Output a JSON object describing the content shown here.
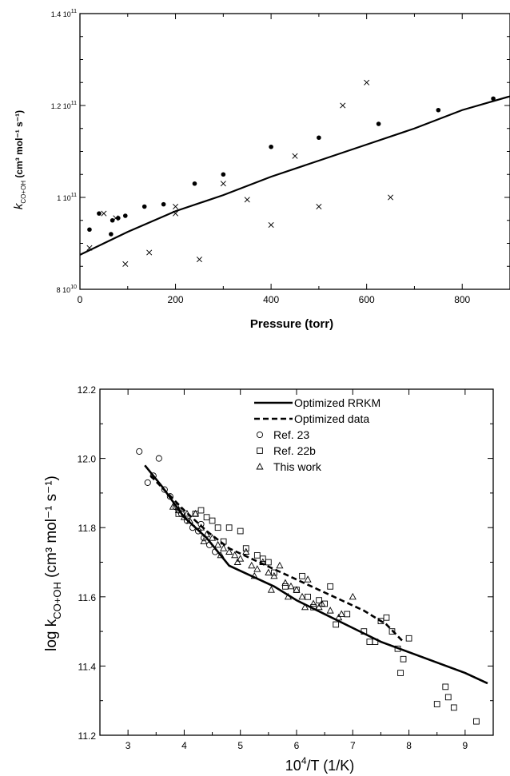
{
  "chart_data": [
    {
      "type": "scatter",
      "xlabel": "Pressure (torr)",
      "ylabel_k": "k",
      "ylabel_sub": "CO+OH",
      "ylabel_units": "(cm³ mol⁻¹ s⁻¹)",
      "xlim": [
        0,
        900
      ],
      "ylim": [
        80000000000.0,
        140000000000.0
      ],
      "x_ticks": [
        {
          "value": 0,
          "label": "0"
        },
        {
          "value": 200,
          "label": "200"
        },
        {
          "value": 400,
          "label": "400"
        },
        {
          "value": 600,
          "label": "600"
        },
        {
          "value": 800,
          "label": "800"
        }
      ],
      "y_ticks": [
        {
          "value": 80000000000.0,
          "mant": "8 10",
          "exp": "10"
        },
        {
          "value": 100000000000.0,
          "mant": "1 10",
          "exp": "11"
        },
        {
          "value": 120000000000.0,
          "mant": "1.2 10",
          "exp": "11"
        },
        {
          "value": 140000000000.0,
          "mant": "1.4 10",
          "exp": "11"
        }
      ],
      "series": [
        {
          "marker": "line",
          "x": [
            0,
            50,
            100,
            200,
            300,
            400,
            500,
            600,
            700,
            800,
            900
          ],
          "y": [
            87500000000.0,
            90000000000.0,
            92500000000.0,
            97000000000.0,
            100500000000.0,
            104500000000.0,
            108000000000.0,
            111500000000.0,
            115000000000.0,
            119000000000.0,
            122000000000.0
          ]
        },
        {
          "marker": "dot",
          "x": [
            20,
            40,
            65,
            68,
            80,
            95,
            135,
            175,
            240,
            300,
            400,
            500,
            625,
            750,
            865
          ],
          "y": [
            93000000000.0,
            96500000000.0,
            92000000000.0,
            95000000000.0,
            95500000000.0,
            96000000000.0,
            98000000000.0,
            98500000000.0,
            103000000000.0,
            105000000000.0,
            111000000000.0,
            113000000000.0,
            116000000000.0,
            119000000000.0,
            121500000000.0
          ]
        },
        {
          "marker": "x",
          "x": [
            20,
            50,
            75,
            95,
            145,
            200,
            200,
            250,
            300,
            350,
            400,
            450,
            500,
            550,
            600,
            650
          ],
          "y": [
            89000000000.0,
            96500000000.0,
            95500000000.0,
            85500000000.0,
            88000000000.0,
            96500000000.0,
            98000000000.0,
            86500000000.0,
            103000000000.0,
            99500000000.0,
            94000000000.0,
            109000000000.0,
            98000000000.0,
            120000000000.0,
            125000000000.0,
            100000000000.0
          ]
        }
      ]
    },
    {
      "type": "scatter",
      "xlabel_base": "10",
      "xlabel_exp": "4",
      "xlabel_rest": "/T   (1/K)",
      "ylabel_main": "log k",
      "ylabel_sub": "CO+OH",
      "ylabel_units": "(cm³ mol⁻¹ s⁻¹)",
      "xlim": [
        2.5,
        9.5
      ],
      "ylim": [
        11.2,
        12.2
      ],
      "x_ticks": [
        "3",
        "4",
        "5",
        "6",
        "7",
        "8",
        "9"
      ],
      "y_ticks": [
        "11.2",
        "11.4",
        "11.6",
        "11.8",
        "12.0",
        "12.2"
      ],
      "legend": [
        "Optimized RRKM",
        "Optimized  data",
        "Ref. 23",
        "Ref. 22b",
        "This work"
      ],
      "series": [
        {
          "name": "Optimized RRKM",
          "marker": "solid",
          "x": [
            3.3,
            3.6,
            4.0,
            4.4,
            4.8,
            5.2,
            5.6,
            6.0,
            6.5,
            7.0,
            7.5,
            8.0,
            8.5,
            9.0,
            9.4
          ],
          "y": [
            11.98,
            11.92,
            11.83,
            11.77,
            11.69,
            11.66,
            11.63,
            11.59,
            11.55,
            11.51,
            11.47,
            11.44,
            11.41,
            11.38,
            11.35
          ]
        },
        {
          "name": "Optimized  data",
          "marker": "dashed",
          "x": [
            3.4,
            3.7,
            4.0,
            4.4,
            4.8,
            5.2,
            5.6,
            6.0,
            6.4,
            6.8,
            7.2,
            7.6,
            7.9
          ],
          "y": [
            11.95,
            11.9,
            11.85,
            11.79,
            11.74,
            11.71,
            11.68,
            11.65,
            11.62,
            11.59,
            11.56,
            11.52,
            11.47
          ]
        },
        {
          "name": "Ref. 23",
          "marker": "circle",
          "x": [
            3.2,
            3.35,
            3.45,
            3.55,
            3.65,
            3.75,
            3.85,
            3.95,
            4.05,
            4.15,
            4.25,
            4.35,
            4.45,
            4.55,
            3.9,
            4.3
          ],
          "y": [
            12.02,
            11.93,
            11.95,
            12.0,
            11.91,
            11.89,
            11.86,
            11.84,
            11.82,
            11.8,
            11.79,
            11.77,
            11.75,
            11.73,
            11.85,
            11.81
          ]
        },
        {
          "name": "Ref. 22b",
          "marker": "square",
          "x": [
            3.9,
            4.2,
            4.4,
            4.6,
            4.7,
            4.8,
            5.0,
            5.1,
            5.3,
            5.5,
            5.6,
            5.8,
            6.0,
            6.1,
            6.2,
            6.3,
            6.5,
            6.6,
            6.7,
            6.9,
            7.2,
            7.4,
            7.5,
            7.6,
            7.7,
            7.8,
            7.9,
            8.0,
            8.5,
            8.7,
            8.8,
            9.2,
            4.3,
            4.5,
            5.4,
            6.4,
            7.3,
            7.85,
            8.65
          ],
          "y": [
            11.84,
            11.84,
            11.83,
            11.8,
            11.76,
            11.8,
            11.79,
            11.74,
            11.72,
            11.7,
            11.67,
            11.63,
            11.62,
            11.66,
            11.6,
            11.57,
            11.58,
            11.63,
            11.52,
            11.55,
            11.5,
            11.47,
            11.53,
            11.54,
            11.5,
            11.45,
            11.42,
            11.48,
            11.29,
            11.31,
            11.28,
            11.24,
            11.85,
            11.82,
            11.71,
            11.59,
            11.47,
            11.38,
            11.34
          ]
        },
        {
          "name": "This work",
          "marker": "triangle",
          "x": [
            3.8,
            3.9,
            4.0,
            4.1,
            4.2,
            4.3,
            4.4,
            4.5,
            4.6,
            4.7,
            4.8,
            4.9,
            5.0,
            5.1,
            5.2,
            5.3,
            5.4,
            5.5,
            5.6,
            5.7,
            5.8,
            5.9,
            6.0,
            6.1,
            6.2,
            6.3,
            6.4,
            6.6,
            6.8,
            7.0,
            4.05,
            4.35,
            4.65,
            4.95,
            5.25,
            5.55,
            5.85,
            6.15,
            6.45,
            6.75
          ],
          "y": [
            11.86,
            11.85,
            11.83,
            11.82,
            11.84,
            11.8,
            11.78,
            11.77,
            11.75,
            11.74,
            11.73,
            11.72,
            11.71,
            11.73,
            11.69,
            11.68,
            11.7,
            11.67,
            11.66,
            11.69,
            11.64,
            11.63,
            11.62,
            11.6,
            11.65,
            11.58,
            11.57,
            11.56,
            11.55,
            11.6,
            11.84,
            11.76,
            11.72,
            11.7,
            11.66,
            11.62,
            11.6,
            11.57,
            11.58,
            11.54
          ]
        }
      ]
    }
  ]
}
